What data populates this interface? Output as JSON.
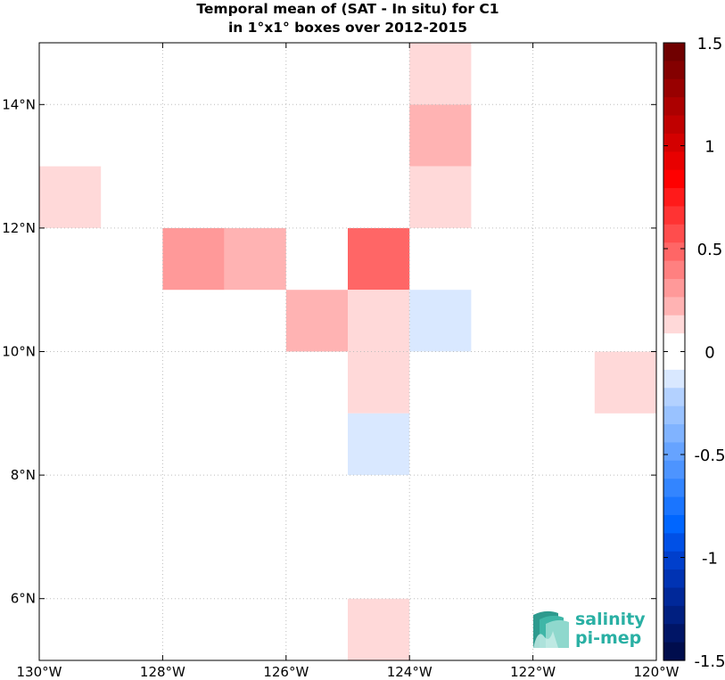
{
  "title_line1": "Temporal mean of (SAT - In situ) for C1",
  "title_line2": "in 1°x1° boxes over 2012-2015",
  "logo": {
    "line1": "salinity",
    "line2": "pi-mep",
    "color": "#2ab0a4"
  },
  "chart_data": {
    "type": "heatmap",
    "title": "Temporal mean of (SAT - In situ) for C1 in 1°x1° boxes over 2012-2015",
    "x_unit": "longitude",
    "y_unit": "latitude",
    "xlim": [
      -130,
      -120
    ],
    "ylim": [
      5,
      15
    ],
    "grid": true,
    "x_ticks": [
      {
        "value": -130,
        "label": "130°W"
      },
      {
        "value": -128,
        "label": "128°W"
      },
      {
        "value": -126,
        "label": "126°W"
      },
      {
        "value": -124,
        "label": "124°W"
      },
      {
        "value": -122,
        "label": "122°W"
      },
      {
        "value": -120,
        "label": "120°W"
      }
    ],
    "y_ticks": [
      {
        "value": 6,
        "label": "6°N"
      },
      {
        "value": 8,
        "label": "8°N"
      },
      {
        "value": 10,
        "label": "10°N"
      },
      {
        "value": 12,
        "label": "12°N"
      },
      {
        "value": 14,
        "label": "14°N"
      }
    ],
    "cells": [
      {
        "lon": -124,
        "lat": 14,
        "value": 0.15
      },
      {
        "lon": -124,
        "lat": 13,
        "value": 0.25
      },
      {
        "lon": -130,
        "lat": 12,
        "value": 0.15
      },
      {
        "lon": -124,
        "lat": 12,
        "value": 0.15
      },
      {
        "lon": -128,
        "lat": 11,
        "value": 0.35
      },
      {
        "lon": -127,
        "lat": 11,
        "value": 0.25
      },
      {
        "lon": -125,
        "lat": 11,
        "value": 0.45
      },
      {
        "lon": -126,
        "lat": 10,
        "value": 0.25
      },
      {
        "lon": -125,
        "lat": 10,
        "value": 0.15
      },
      {
        "lon": -124,
        "lat": 10,
        "value": -0.15
      },
      {
        "lon": -125,
        "lat": 9,
        "value": 0.15
      },
      {
        "lon": -121,
        "lat": 9,
        "value": 0.15
      },
      {
        "lon": -125,
        "lat": 8,
        "value": -0.15
      },
      {
        "lon": -125,
        "lat": 5,
        "value": 0.15
      }
    ],
    "colorbar": {
      "min": -1.5,
      "max": 1.5,
      "ticks": [
        {
          "value": 1.5,
          "label": "1.5"
        },
        {
          "value": 1,
          "label": "1"
        },
        {
          "value": 0.5,
          "label": "0.5"
        },
        {
          "value": 0,
          "label": "0"
        },
        {
          "value": -0.5,
          "label": "-0.5"
        },
        {
          "value": -1,
          "label": "-1"
        },
        {
          "value": -1.5,
          "label": "-1.5"
        }
      ],
      "colors_top_to_bottom": [
        "#700000",
        "#840000",
        "#980000",
        "#ac0000",
        "#c00000",
        "#d40000",
        "#e80000",
        "#ff0000",
        "#ff1a1a",
        "#ff3333",
        "#ff4d4d",
        "#ff6666",
        "#ff8080",
        "#ff9999",
        "#ffb3b3",
        "#ffd9d9",
        "#ffffff",
        "#ffffff",
        "#d9e8ff",
        "#b3d1ff",
        "#99c2ff",
        "#80b3ff",
        "#66a3ff",
        "#4d94ff",
        "#3385ff",
        "#1a75ff",
        "#0066ff",
        "#0050e6",
        "#003fcc",
        "#0033b3",
        "#002899",
        "#001f80",
        "#001566",
        "#000d4d"
      ]
    }
  }
}
